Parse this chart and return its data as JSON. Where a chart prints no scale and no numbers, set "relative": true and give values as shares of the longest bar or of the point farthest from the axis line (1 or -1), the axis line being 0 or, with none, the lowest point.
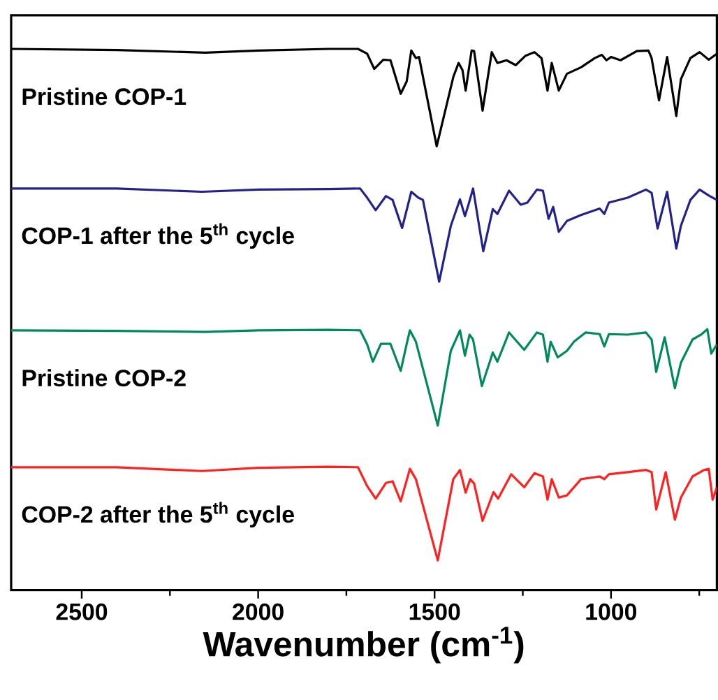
{
  "chart_data": {
    "type": "line",
    "relative": true,
    "xlabel": "Wavenumber (cm$^{-1}$)",
    "xlim": [
      2700,
      700
    ],
    "xticks": [
      2500,
      {
        "value": 2250,
        "label": null
      },
      2000,
      {
        "value": 1750,
        "label": null
      },
      1500,
      {
        "value": 1250,
        "label": null
      },
      1000,
      {
        "value": 750,
        "label": null
      }
    ],
    "tick_labels": "x",
    "line_style": "solid",
    "marker": "none",
    "series": [
      {
        "name": "Pristine COP-1",
        "color": "#000000",
        "x": [
          2700,
          2400,
          2150,
          2000,
          1800,
          1717,
          1691,
          1671,
          1645,
          1625,
          1596,
          1579,
          1566,
          1553,
          1544,
          1494,
          1447,
          1432,
          1421,
          1412,
          1395,
          1388,
          1364,
          1338,
          1322,
          1296,
          1270,
          1243,
          1217,
          1197,
          1180,
          1168,
          1148,
          1125,
          1085,
          1046,
          1026,
          1013,
          1000,
          973,
          927,
          894,
          885,
          864,
          841,
          815,
          802,
          775,
          749,
          723,
          700
        ],
        "values": [
          1.0,
          0.998,
          0.993,
          0.997,
          1.0,
          1.0,
          0.991,
          0.963,
          0.98,
          0.979,
          0.917,
          0.94,
          0.997,
          0.983,
          0.985,
          0.82,
          0.948,
          0.974,
          0.961,
          0.923,
          0.997,
          0.996,
          0.886,
          0.994,
          0.974,
          0.979,
          0.97,
          0.987,
          0.994,
          0.983,
          0.923,
          0.974,
          0.923,
          0.954,
          0.966,
          0.983,
          0.989,
          0.979,
          0.985,
          0.979,
          0.996,
          0.997,
          0.983,
          0.905,
          0.985,
          0.876,
          0.944,
          0.983,
          0.994,
          0.98,
          0.991
        ]
      },
      {
        "name": "COP-1 after the 5$^{th}$ cycle",
        "color": "#22228a",
        "x": [
          2700,
          2400,
          2160,
          2000,
          1800,
          1711,
          1691,
          1667,
          1638,
          1619,
          1592,
          1566,
          1546,
          1533,
          1487,
          1454,
          1428,
          1414,
          1404,
          1391,
          1362,
          1335,
          1322,
          1289,
          1256,
          1237,
          1210,
          1193,
          1177,
          1164,
          1148,
          1125,
          1085,
          1032,
          1019,
          1006,
          953,
          901,
          885,
          868,
          841,
          815,
          802,
          775,
          749,
          723,
          700
        ],
        "values": [
          0.742,
          0.742,
          0.736,
          0.74,
          0.741,
          0.742,
          0.725,
          0.702,
          0.728,
          0.721,
          0.669,
          0.736,
          0.725,
          0.721,
          0.57,
          0.673,
          0.722,
          0.691,
          0.712,
          0.742,
          0.626,
          0.704,
          0.695,
          0.738,
          0.712,
          0.716,
          0.74,
          0.738,
          0.686,
          0.708,
          0.662,
          0.682,
          0.693,
          0.705,
          0.695,
          0.716,
          0.725,
          0.74,
          0.734,
          0.668,
          0.736,
          0.631,
          0.673,
          0.721,
          0.74,
          0.729,
          0.721
        ]
      },
      {
        "name": "Pristine COP-2",
        "color": "#008a5a",
        "x": [
          2700,
          2400,
          2150,
          2000,
          1800,
          1711,
          1691,
          1675,
          1652,
          1625,
          1596,
          1579,
          1570,
          1553,
          1491,
          1454,
          1428,
          1414,
          1401,
          1391,
          1366,
          1335,
          1322,
          1289,
          1246,
          1210,
          1193,
          1180,
          1171,
          1151,
          1125,
          1105,
          1072,
          1032,
          1019,
          1006,
          953,
          901,
          885,
          872,
          848,
          819,
          802,
          769,
          743,
          727,
          716,
          700
        ],
        "values": [
          0.48,
          0.479,
          0.477,
          0.48,
          0.481,
          0.48,
          0.454,
          0.422,
          0.455,
          0.455,
          0.405,
          0.455,
          0.48,
          0.459,
          0.304,
          0.442,
          0.48,
          0.433,
          0.472,
          0.463,
          0.377,
          0.439,
          0.422,
          0.476,
          0.444,
          0.476,
          0.472,
          0.422,
          0.459,
          0.43,
          0.442,
          0.459,
          0.476,
          0.473,
          0.45,
          0.473,
          0.472,
          0.476,
          0.463,
          0.403,
          0.467,
          0.373,
          0.42,
          0.463,
          0.473,
          0.482,
          0.437,
          0.454
        ]
      },
      {
        "name": "COP-2 after the 5$^{th}$ cycle",
        "color": "#ff2020",
        "x": [
          2700,
          2400,
          2160,
          2000,
          1800,
          1717,
          1691,
          1667,
          1638,
          1619,
          1596,
          1570,
          1553,
          1491,
          1447,
          1428,
          1412,
          1399,
          1388,
          1364,
          1333,
          1320,
          1283,
          1246,
          1217,
          1193,
          1180,
          1168,
          1148,
          1125,
          1085,
          1032,
          1019,
          1006,
          953,
          901,
          885,
          872,
          845,
          819,
          802,
          769,
          736,
          723,
          712,
          700
        ],
        "values": [
          0.227,
          0.227,
          0.22,
          0.226,
          0.228,
          0.227,
          0.192,
          0.169,
          0.198,
          0.201,
          0.164,
          0.224,
          0.205,
          0.055,
          0.205,
          0.222,
          0.18,
          0.205,
          0.197,
          0.128,
          0.181,
          0.169,
          0.214,
          0.19,
          0.216,
          0.21,
          0.167,
          0.205,
          0.171,
          0.175,
          0.205,
          0.21,
          0.205,
          0.214,
          0.218,
          0.222,
          0.218,
          0.149,
          0.218,
          0.13,
          0.171,
          0.21,
          0.222,
          0.224,
          0.167,
          0.19
        ]
      }
    ]
  }
}
